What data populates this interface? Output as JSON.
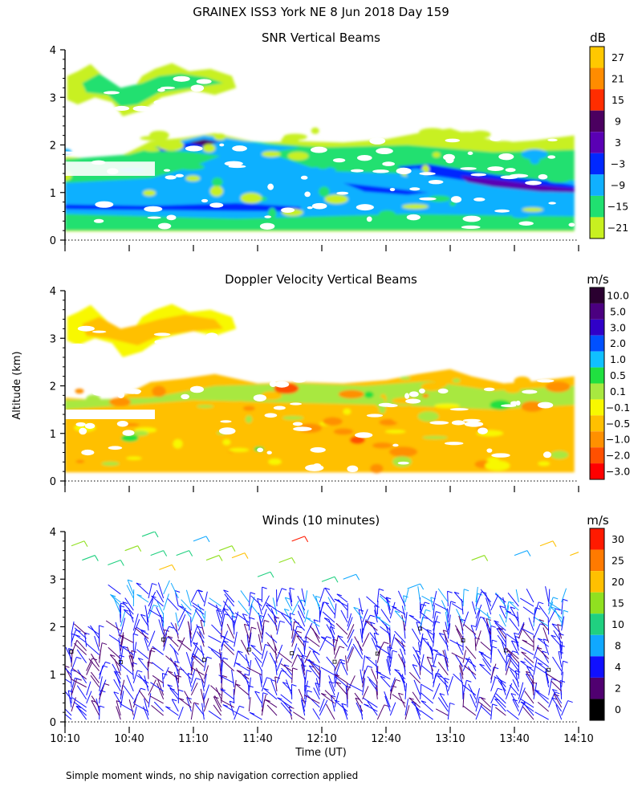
{
  "header": "GRAINEX ISS3 York NE   8 Jun 2018 Day 159",
  "footnote": "Simple moment winds, no ship navigation correction applied",
  "shared_axes": {
    "ylabel": "Altitude (km)",
    "xlabel": "Time (UT)",
    "xticks": [
      "10:10",
      "10:40",
      "11:10",
      "11:40",
      "12:10",
      "12:40",
      "13:10",
      "13:40",
      "14:10"
    ],
    "yticks": [
      "0",
      "1",
      "2",
      "3",
      "4"
    ],
    "ylim": [
      0,
      4
    ]
  },
  "panels": [
    {
      "title": "SNR Vertical Beams",
      "unit": "dB",
      "colorbar": {
        "labels": [
          "27",
          "21",
          "15",
          "9",
          "3",
          "−3",
          "−9",
          "−15",
          "−21"
        ],
        "colors": [
          "#ffc800",
          "#ff8c00",
          "#ff2d00",
          "#4b0060",
          "#5a00b4",
          "#0028ff",
          "#10b0ff",
          "#20e070",
          "#c8f020"
        ]
      }
    },
    {
      "title": "Doppler Velocity Vertical Beams",
      "unit": "m/s",
      "colorbar": {
        "labels": [
          "10.0",
          "5.0",
          "3.0",
          "2.0",
          "1.0",
          "0.5",
          "0.1",
          "−0.1",
          "−0.5",
          "−1.0",
          "−2.0",
          "−3.0"
        ],
        "colors": [
          "#2a0030",
          "#4b0080",
          "#3000c8",
          "#0050ff",
          "#10c0ff",
          "#20e040",
          "#a8e840",
          "#f8f800",
          "#ffc000",
          "#ff9000",
          "#ff5000",
          "#ff0000"
        ]
      }
    },
    {
      "title": "Winds (10 minutes)",
      "unit": "m/s",
      "colorbar": {
        "labels": [
          "30",
          "25",
          "20",
          "15",
          "10",
          "8",
          "4",
          "2",
          "0"
        ],
        "colors": [
          "#ff1a00",
          "#ff7a00",
          "#ffc000",
          "#90e020",
          "#20d080",
          "#10a8ff",
          "#1010ff",
          "#500070",
          "#000000"
        ]
      }
    }
  ],
  "chart_data": [
    {
      "type": "heatmap",
      "title": "SNR Vertical Beams",
      "xlabel": "Time (UT)",
      "ylabel": "Altitude (km)",
      "xlim": [
        "10:10",
        "14:10"
      ],
      "ylim": [
        0,
        4
      ],
      "color_unit": "dB",
      "color_range": [
        -21,
        27
      ],
      "features": [
        {
          "x_range": [
            "10:10",
            "11:30"
          ],
          "y_range": [
            2.6,
            3.6
          ],
          "level": "-15 to -21"
        },
        {
          "x_range": [
            "10:10",
            "14:05"
          ],
          "y_range": [
            0.1,
            2.2
          ],
          "level": "-9 to -21"
        },
        {
          "x_range": [
            "11:05",
            "11:25"
          ],
          "y_range": [
            1.9,
            2.2
          ],
          "level": "3 to 9"
        },
        {
          "x_range": [
            "13:00",
            "14:05"
          ],
          "y_range": [
            1.0,
            1.5
          ],
          "level": "3 to -3"
        },
        {
          "x_range": [
            "10:10",
            "14:05"
          ],
          "y_range": [
            0.6,
            1.2
          ],
          "level": "-3 to -9"
        }
      ]
    },
    {
      "type": "heatmap",
      "title": "Doppler Velocity Vertical Beams",
      "xlabel": "Time (UT)",
      "ylabel": "Altitude (km)",
      "xlim": [
        "10:10",
        "14:10"
      ],
      "ylim": [
        0,
        4
      ],
      "color_unit": "m/s",
      "color_range": [
        -3.0,
        10.0
      ],
      "features": [
        {
          "x_range": [
            "10:10",
            "11:30"
          ],
          "y_range": [
            2.6,
            3.6
          ],
          "level": "-0.1 to -1.0"
        },
        {
          "x_range": [
            "10:10",
            "14:05"
          ],
          "y_range": [
            0.1,
            2.3
          ],
          "level": "0.1 to -1.0"
        }
      ]
    },
    {
      "type": "scatter",
      "subtype": "wind_barbs",
      "title": "Winds (10 minutes)",
      "xlabel": "Time (UT)",
      "ylabel": "Altitude (km)",
      "xlim": [
        "10:10",
        "14:10"
      ],
      "ylim": [
        0,
        4
      ],
      "color_unit": "m/s",
      "color_range": [
        0,
        30
      ],
      "profile_times": [
        "10:13",
        "10:20",
        "10:26",
        "10:36",
        "10:42",
        "10:49",
        "10:56",
        "11:03",
        "11:09",
        "11:15",
        "11:23",
        "11:29",
        "11:36",
        "11:42",
        "11:49",
        "11:56",
        "12:02",
        "12:09",
        "12:16",
        "12:22",
        "12:29",
        "12:36",
        "12:42",
        "12:49",
        "12:56",
        "13:02",
        "13:09",
        "13:16",
        "13:22",
        "13:29",
        "13:36",
        "13:42",
        "13:49",
        "13:56",
        "14:02"
      ],
      "typical_speed_ms": {
        "below_2km": "2 to 8",
        "above_3km": "8 to 30"
      }
    }
  ]
}
